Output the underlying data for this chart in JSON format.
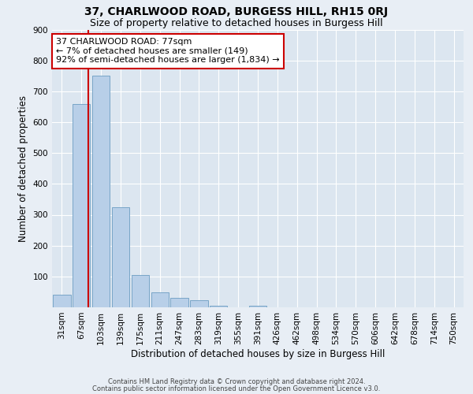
{
  "title": "37, CHARLWOOD ROAD, BURGESS HILL, RH15 0RJ",
  "subtitle": "Size of property relative to detached houses in Burgess Hill",
  "xlabel": "Distribution of detached houses by size in Burgess Hill",
  "ylabel": "Number of detached properties",
  "footnote1": "Contains HM Land Registry data © Crown copyright and database right 2024.",
  "footnote2": "Contains public sector information licensed under the Open Government Licence v3.0.",
  "bin_labels": [
    "31sqm",
    "67sqm",
    "103sqm",
    "139sqm",
    "175sqm",
    "211sqm",
    "247sqm",
    "283sqm",
    "319sqm",
    "355sqm",
    "391sqm",
    "426sqm",
    "462sqm",
    "498sqm",
    "534sqm",
    "570sqm",
    "606sqm",
    "642sqm",
    "678sqm",
    "714sqm",
    "750sqm"
  ],
  "bar_values": [
    40,
    660,
    750,
    325,
    105,
    48,
    30,
    22,
    5,
    0,
    5,
    0,
    0,
    0,
    0,
    0,
    0,
    0,
    0,
    0,
    0
  ],
  "bar_color": "#b8cfe8",
  "bar_edgecolor": "#6b9dc2",
  "vline_x": 1.35,
  "vline_color": "#cc0000",
  "annotation_text": "37 CHARLWOOD ROAD: 77sqm\n← 7% of detached houses are smaller (149)\n92% of semi-detached houses are larger (1,834) →",
  "annotation_box_edgecolor": "#cc0000",
  "annotation_box_facecolor": "white",
  "ylim": [
    0,
    900
  ],
  "yticks": [
    100,
    200,
    300,
    400,
    500,
    600,
    700,
    800,
    900
  ],
  "background_color": "#e8eef5",
  "plot_background": "#dce6f0",
  "grid_color": "white",
  "title_fontsize": 10,
  "subtitle_fontsize": 9,
  "tick_fontsize": 7.5,
  "ylabel_fontsize": 8.5,
  "xlabel_fontsize": 8.5
}
